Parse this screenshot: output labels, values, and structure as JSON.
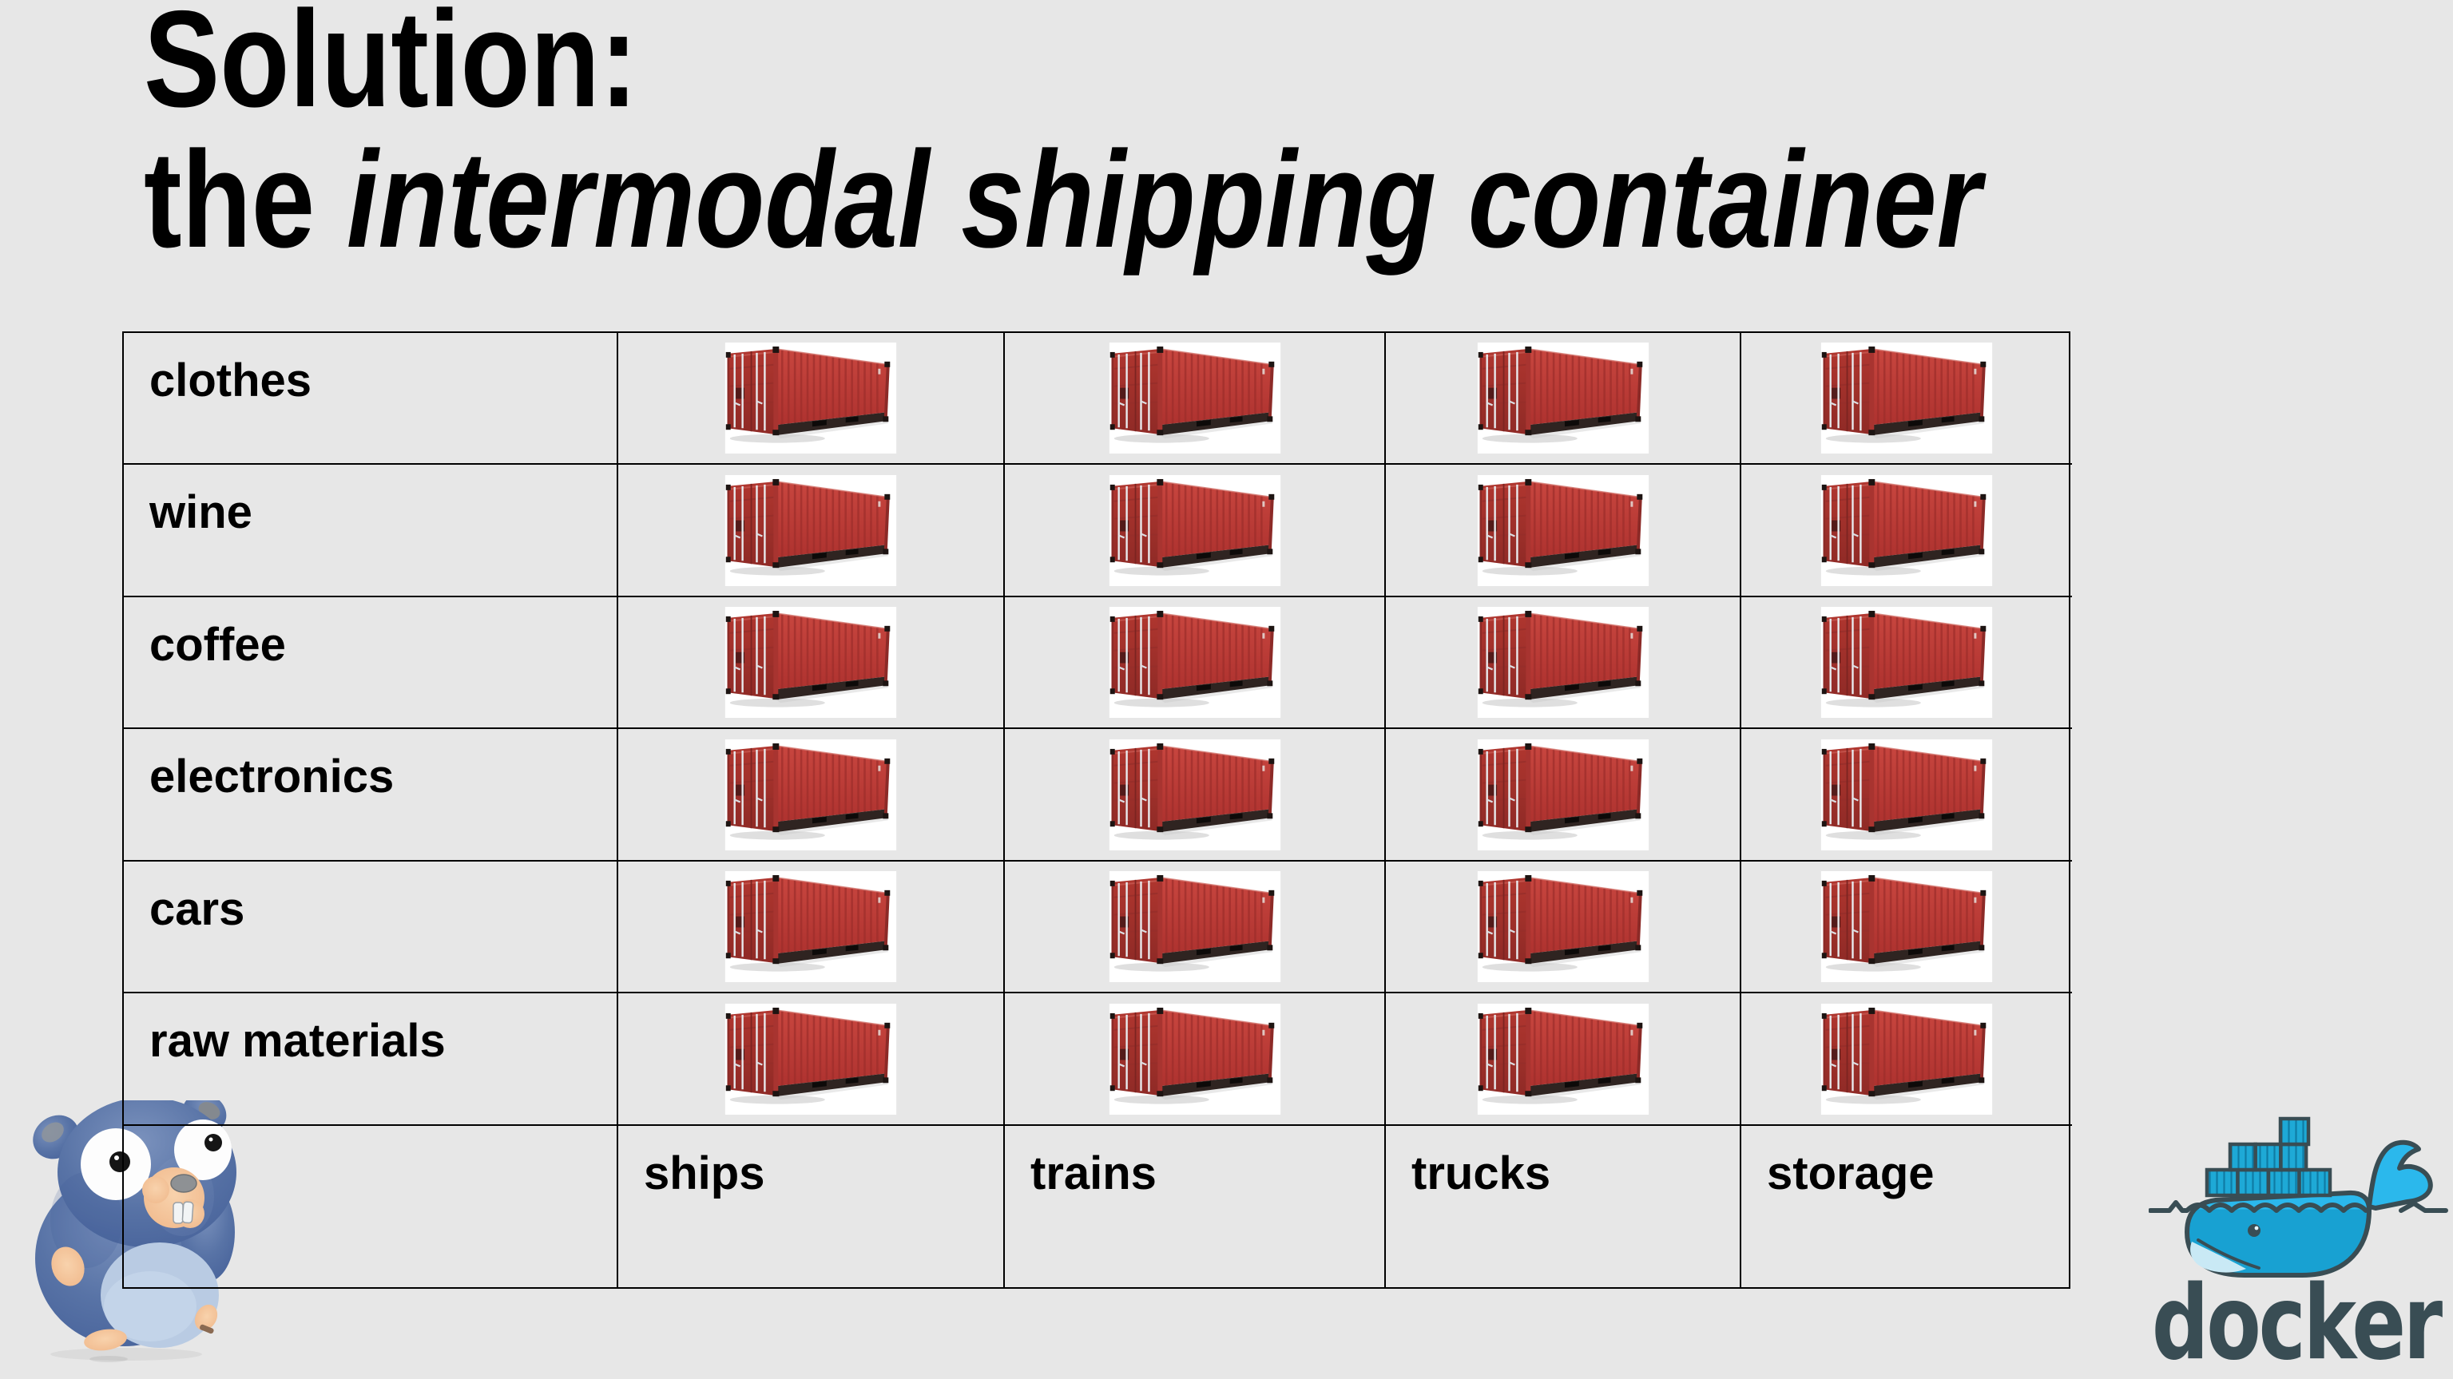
{
  "title": {
    "line1": "Solution:",
    "line2_lead": "the ",
    "line2_emphasis": "intermodal shipping container"
  },
  "table": {
    "row_labels": [
      "clothes",
      "wine",
      "coffee",
      "electronics",
      "cars",
      "raw materials"
    ],
    "column_labels": [
      "ships",
      "trains",
      "trucks",
      "storage"
    ]
  },
  "branding": {
    "docker_wordmark": "docker"
  },
  "icons": {
    "table_cell": "red-shipping-container-photo",
    "bottom_left": "go-gopher-plush-mascot-photo",
    "bottom_right": "docker-whale-logo"
  },
  "colors": {
    "background": "#e7e7e7",
    "table_border": "#000000",
    "container_red": "#bf3a38",
    "container_red_dark": "#9c2d2b",
    "docker_blue": "#2bb8ec",
    "docker_dark": "#394d54",
    "gopher_blue": "#5873a6"
  }
}
